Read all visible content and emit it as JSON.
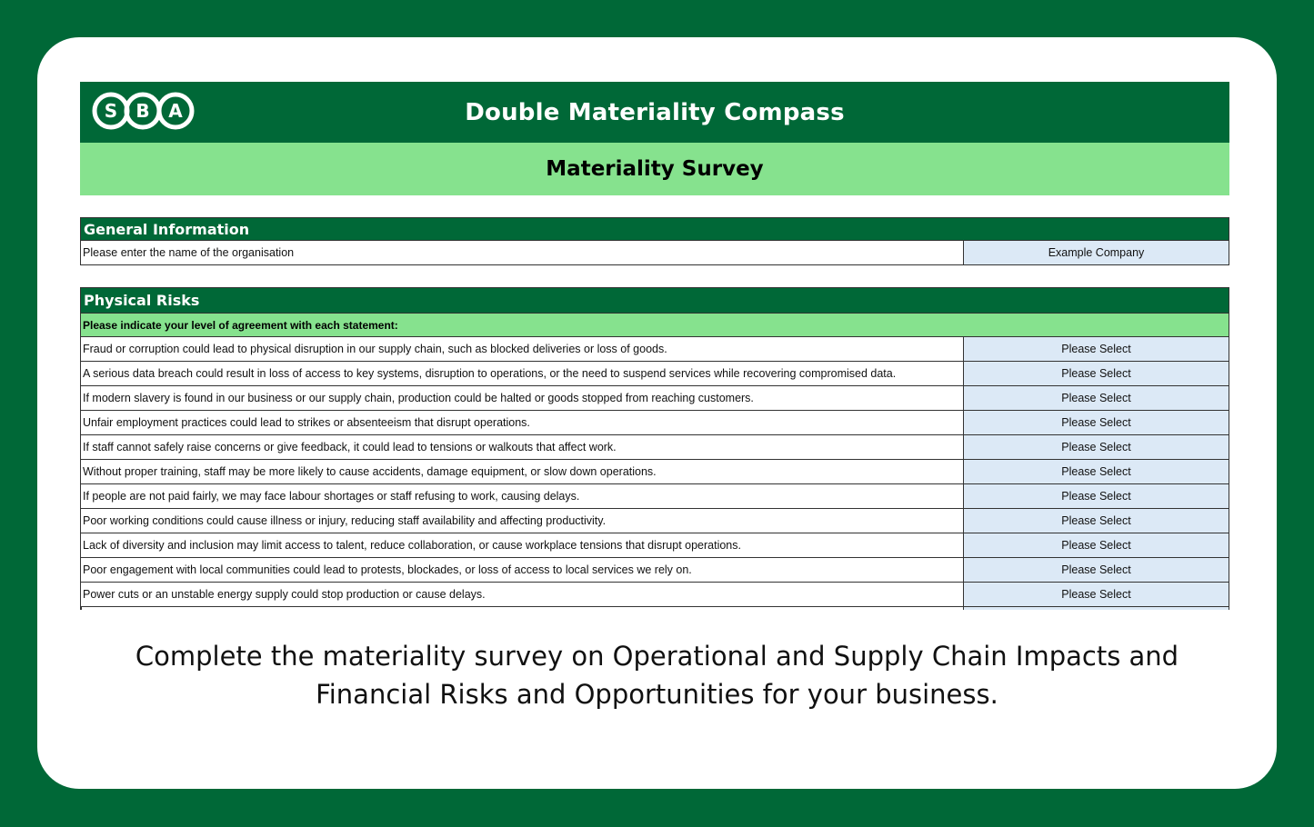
{
  "header": {
    "logo_text": "SBA",
    "title": "Double Materiality Compass",
    "subtitle": "Materiality Survey"
  },
  "general": {
    "heading": "General Information",
    "prompt": "Please enter the name of the organisation",
    "value": "Example Company"
  },
  "physical": {
    "heading": "Physical Risks",
    "instruction": "Please indicate your level of agreement with each statement:",
    "select_label": "Please Select",
    "statements": [
      "Fraud or corruption could lead to physical disruption in our supply chain, such as blocked deliveries or loss of goods.",
      "A serious data breach could result in loss of access to key systems, disruption to operations, or the need to suspend services while recovering compromised data.",
      "If modern slavery is found in our business or our supply chain, production could be halted or goods stopped from reaching customers.",
      "Unfair employment practices could lead to strikes or absenteeism that disrupt operations.",
      "If staff cannot safely raise concerns or give feedback, it could lead to tensions or walkouts that affect work.",
      "Without proper training, staff may be more likely to cause accidents, damage equipment, or slow down operations.",
      "If people are not paid fairly, we may face labour shortages or staff refusing to work, causing delays.",
      "Poor working conditions could cause illness or injury, reducing staff availability and affecting productivity.",
      "Lack of diversity and inclusion may limit access to talent, reduce collaboration, or cause workplace tensions that disrupt operations.",
      "Poor engagement with local communities could lead to protests, blockades, or loss of access to local services we rely on.",
      "Power cuts or an unstable energy supply could stop production or cause delays."
    ]
  },
  "caption": {
    "line1": "Complete the materiality survey on Operational and Supply Chain Impacts and",
    "line2": "Financial Risks and Opportunities for your business."
  },
  "colors": {
    "brand_green": "#006837",
    "light_green": "#86e28e",
    "input_blue": "#dce9f6"
  }
}
